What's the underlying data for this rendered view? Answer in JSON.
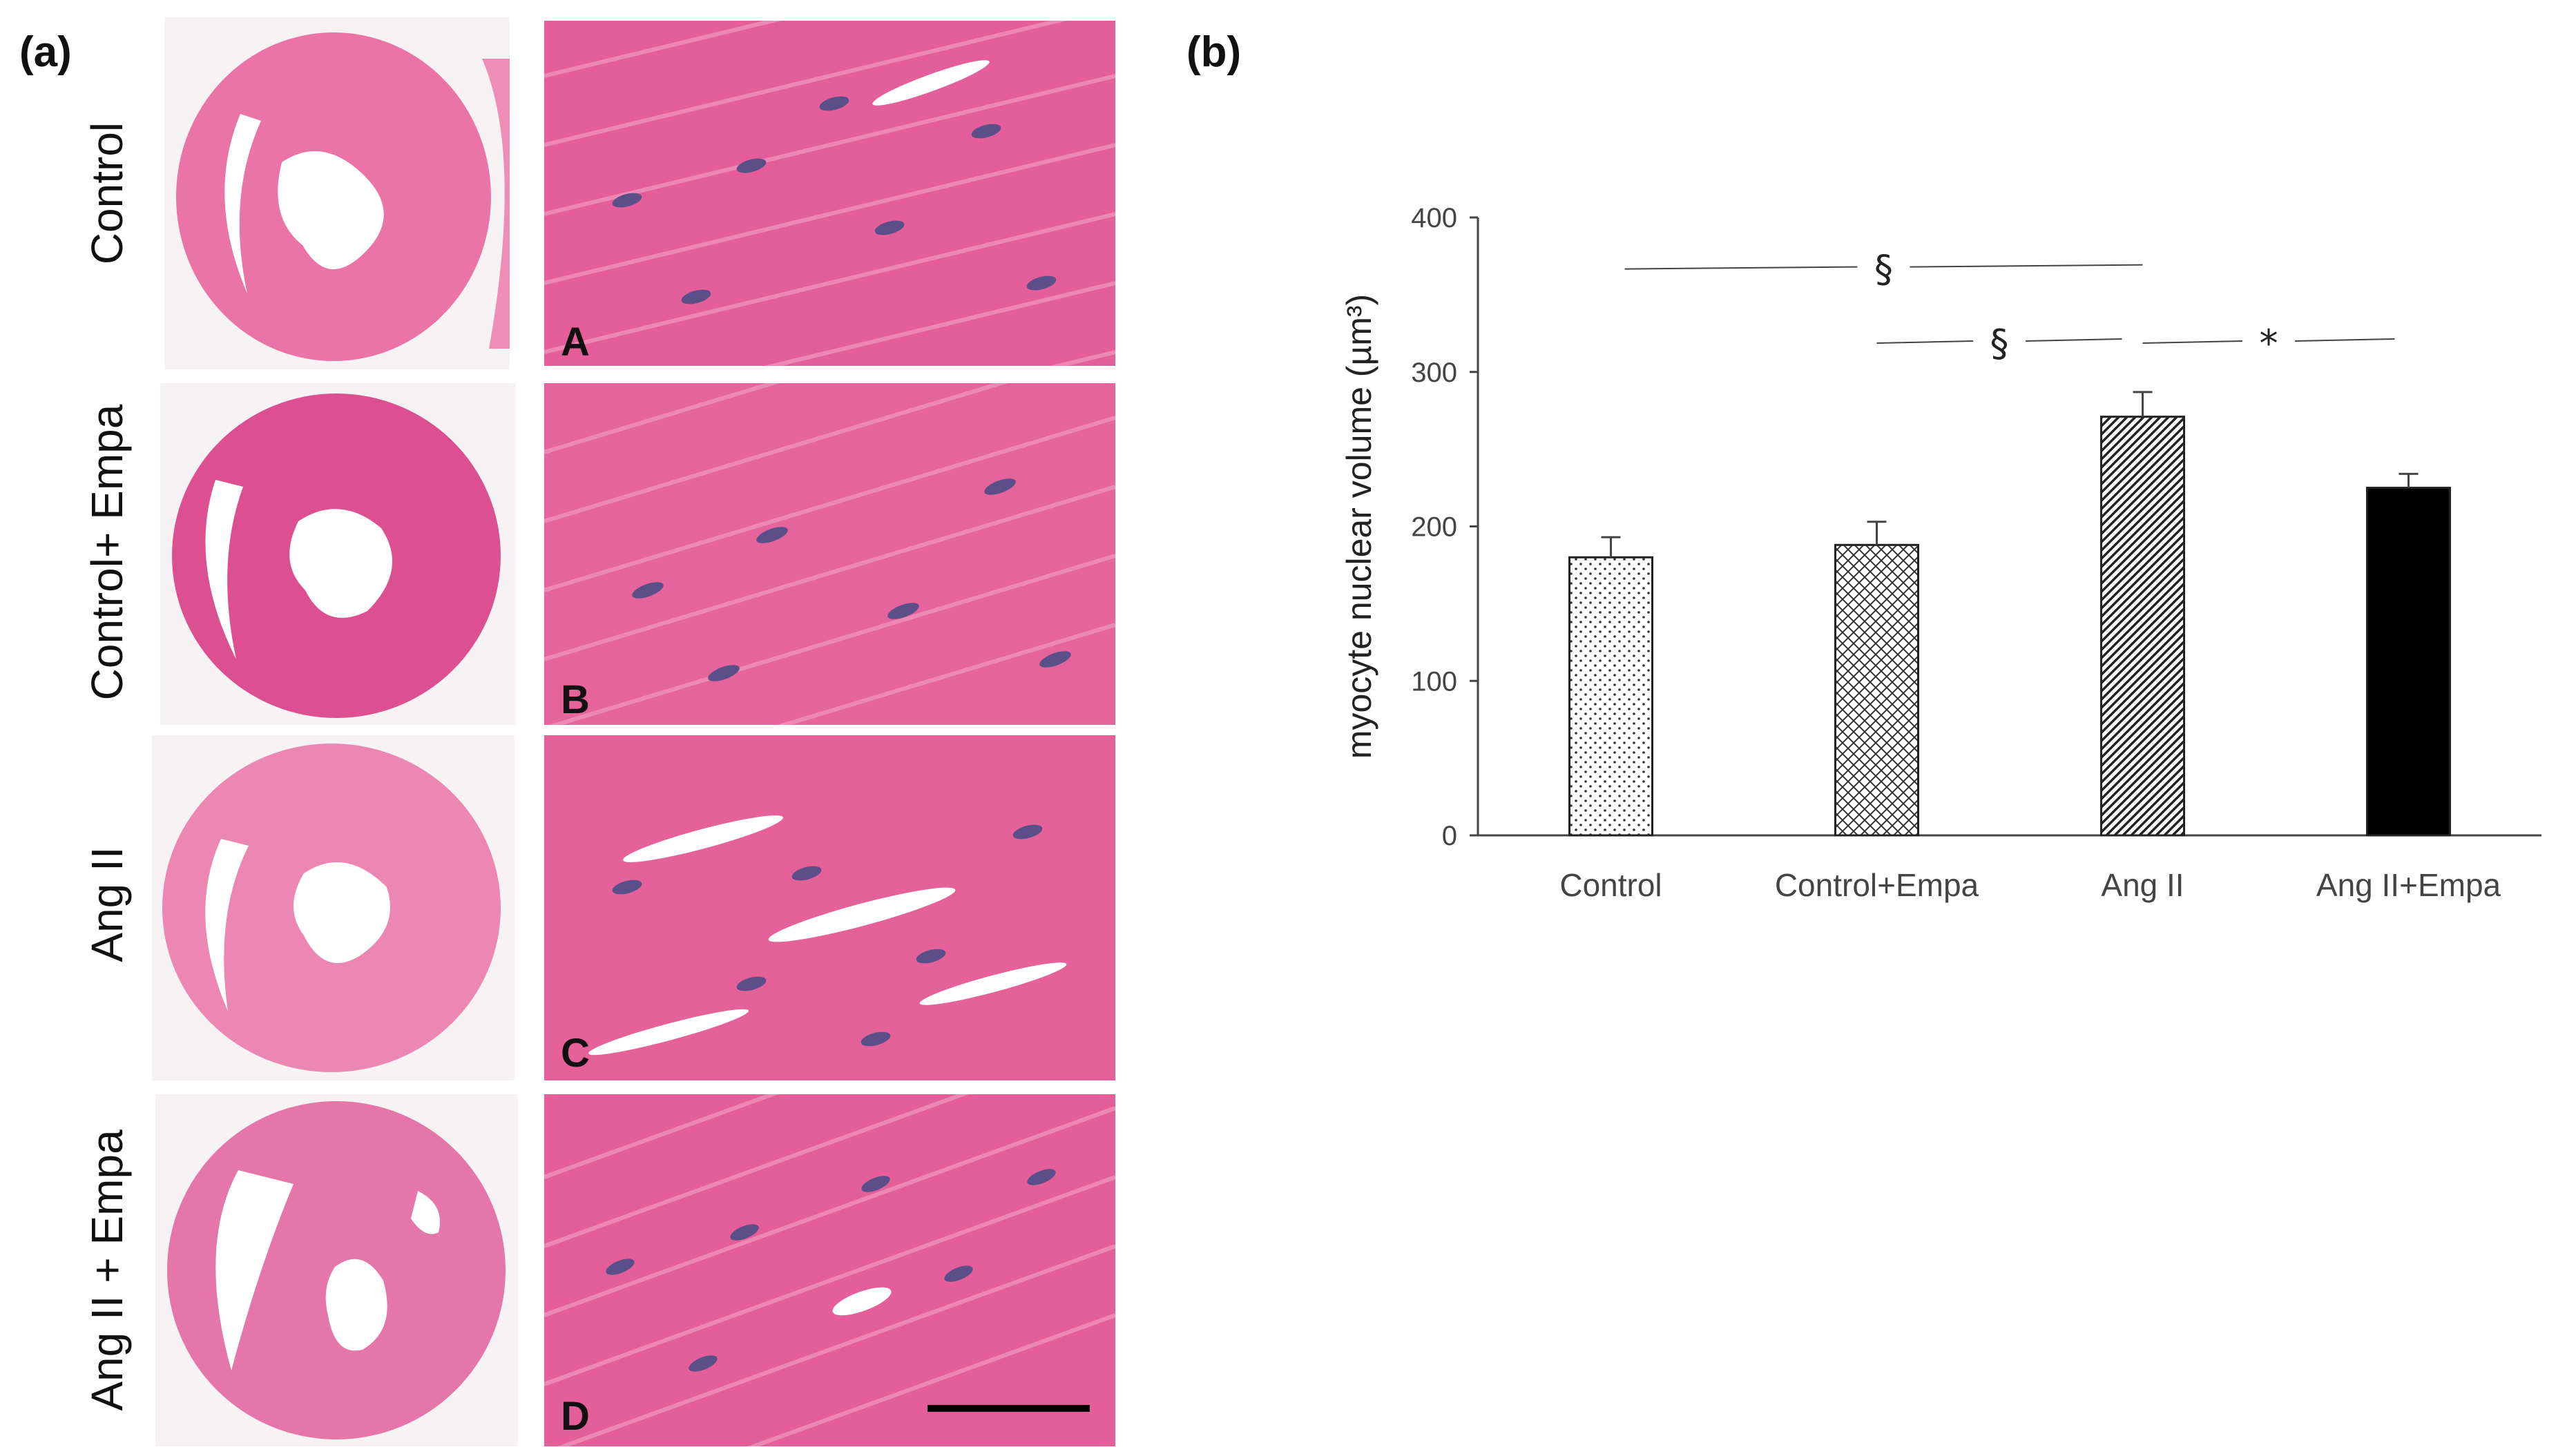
{
  "panel_a_label": "(a)",
  "panel_b_label": "(b)",
  "rows": [
    {
      "group": "Control",
      "letter": "A"
    },
    {
      "group": "Control+ Empa",
      "letter": "B"
    },
    {
      "group": "Ang II",
      "letter": "C"
    },
    {
      "group": "Ang II + Empa",
      "letter": "D"
    }
  ],
  "colors": {
    "tissue_pink": "#e8619a",
    "tissue_light": "#f0a3c4",
    "nucleus": "#5b4f8a",
    "lumen": "#ffffff"
  },
  "chart_data": {
    "type": "bar",
    "categories": [
      "Control",
      "Control+Empa",
      "Ang II",
      "Ang II+Empa"
    ],
    "values": [
      180,
      188,
      271,
      225
    ],
    "errors": [
      13,
      15,
      16,
      9
    ],
    "patterns": [
      "dots",
      "crosshatch",
      "diagonal",
      "solid"
    ],
    "ylabel": "myocyte nuclear volume (µm³)",
    "ylim": [
      0,
      400
    ],
    "yticks": [
      0,
      100,
      200,
      300,
      400
    ],
    "grid": false,
    "annotations": [
      {
        "symbol": "§",
        "from": 0,
        "to": 2
      },
      {
        "symbol": "§",
        "from": 1,
        "to": 2
      },
      {
        "symbol": "*",
        "from": 2,
        "to": 3
      }
    ]
  }
}
